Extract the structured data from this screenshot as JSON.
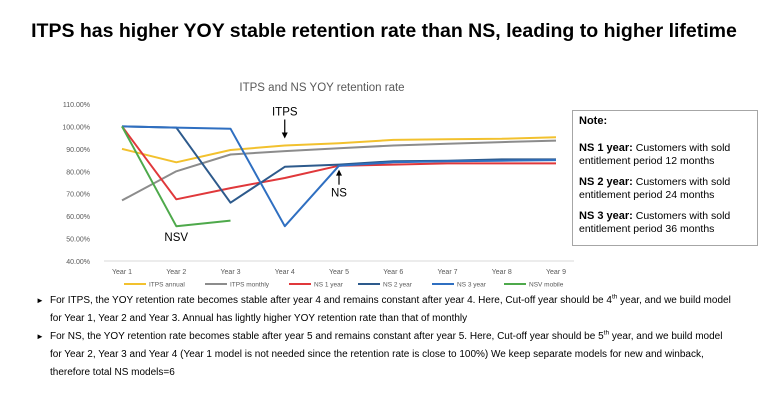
{
  "slide": {
    "title": "ITPS has higher YOY stable retention rate than NS, leading to higher lifetime"
  },
  "chart_data": {
    "type": "line",
    "title": "ITPS and NS YOY retention rate",
    "categories": [
      "Year 1",
      "Year 2",
      "Year 3",
      "Year 4",
      "Year 5",
      "Year 6",
      "Year 7",
      "Year 8",
      "Year 9"
    ],
    "y_ticks": [
      "40.00%",
      "50.00%",
      "60.00%",
      "70.00%",
      "80.00%",
      "90.00%",
      "100.00%",
      "110.00%"
    ],
    "ylim": [
      40,
      110
    ],
    "grid": false,
    "legend_position": "bottom",
    "series": [
      {
        "name": "ITPS annual",
        "color": "#f2c12e",
        "values": [
          90,
          84,
          89.5,
          91.5,
          92.5,
          94,
          94.3,
          94.5,
          95.2
        ]
      },
      {
        "name": "ITPS monthly",
        "color": "#8c8c8c",
        "values": [
          67,
          80,
          87.5,
          89,
          90.3,
          91.5,
          92.3,
          93,
          93.7
        ]
      },
      {
        "name": "NS 1 year",
        "color": "#e0383b",
        "values": [
          100,
          67.5,
          72.5,
          77,
          82.5,
          83,
          83.5,
          83.5,
          83.5
        ]
      },
      {
        "name": "NS 2 year",
        "color": "#2d5a8c",
        "values": [
          100,
          99.5,
          66,
          82,
          83,
          84.5,
          84.7,
          85.3,
          85.3
        ]
      },
      {
        "name": "NS 3 year",
        "color": "#2f6fc1",
        "values": [
          100,
          99.5,
          99,
          55.5,
          82.5,
          84,
          84.5,
          84.7,
          85
        ]
      },
      {
        "name": "NSV mobile",
        "color": "#4ea94b",
        "values": [
          100,
          55.5,
          58,
          null,
          null,
          null,
          null,
          null,
          null
        ]
      }
    ],
    "annotations": [
      {
        "text": "ITPS",
        "arrow": "down",
        "category": "Year 4",
        "value": 91.5
      },
      {
        "text": "NS",
        "arrow": "up",
        "category": "Year 5",
        "value": 82.5
      },
      {
        "text": "NSV",
        "arrow": "none",
        "category": "Year 2",
        "value": 55.5
      }
    ]
  },
  "note": {
    "title": "Note:",
    "items": [
      {
        "term": "NS 1 year:",
        "desc": " Customers with sold entitlement period 12 months"
      },
      {
        "term": "NS 2 year:",
        "desc": " Customers with sold entitlement period 24 months"
      },
      {
        "term": "NS 3 year:",
        "desc": " Customers with sold entitlement period 36 months"
      }
    ]
  },
  "bullets": {
    "b1_part1": "For ITPS, the YOY retention rate becomes stable after year 4 and remains constant after year 4. Here, Cut-off year should be 4",
    "b1_sup": "th",
    "b1_part2": " year, and we build model for Year 1, Year 2 and Year 3. Annual has lightly higher YOY retention rate than that of monthly",
    "b2_part1": "For NS, the YOY retention rate becomes stable after year 5 and remains constant after year 5. Here, Cut-off year should be 5",
    "b2_sup": "th",
    "b2_part2": " year, and we build model for Year 2, Year 3 and Year 4 (Year 1 model is not needed since the retention rate is close to 100%) We keep separate models for new and winback, therefore total NS models=6"
  }
}
